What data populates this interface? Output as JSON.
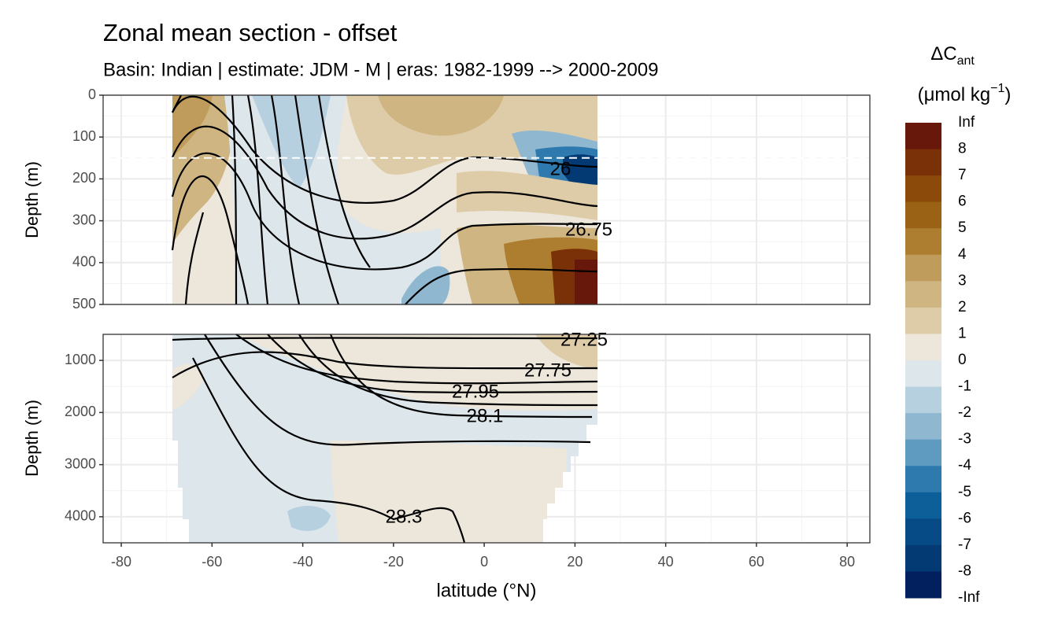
{
  "chart_data": [
    {
      "type": "contour",
      "title": "Zonal mean section - offset",
      "subtitle": "Basin: Indian | estimate: JDM - M | eras: 1982-1999 --> 2000-2009",
      "y_label": "Depth (m)",
      "ylim": [
        0,
        500
      ],
      "yticks": [
        0,
        100,
        200,
        300,
        400,
        500
      ],
      "y_reversed": true,
      "hline": 150,
      "grid": true,
      "contour_labels": [
        "26",
        "26.75"
      ]
    },
    {
      "type": "contour",
      "y_label": "Depth (m)",
      "x_label": "latitude (°N)",
      "ylim": [
        500,
        4500
      ],
      "yticks": [
        1000,
        2000,
        3000,
        4000
      ],
      "y_reversed": true,
      "xlim": [
        -84,
        85
      ],
      "xticks": [
        -80,
        -60,
        -40,
        -20,
        0,
        20,
        40,
        60,
        80
      ],
      "grid": true,
      "contour_labels": [
        "27.25",
        "27.75",
        "27.95",
        "28.1",
        "28.3"
      ]
    }
  ],
  "legend": {
    "title": "ΔC",
    "title_sub": "ant",
    "unit": "(μmol kg",
    "unit_sup": "−1",
    "unit_end": ")",
    "labels": [
      "Inf",
      8,
      7,
      6,
      5,
      4,
      3,
      2,
      1,
      0,
      -1,
      -2,
      -3,
      -4,
      -5,
      -6,
      -7,
      -8,
      "-Inf"
    ],
    "colors": [
      "#67180a",
      "#7a3108",
      "#8c4a0a",
      "#9a6214",
      "#ae7e30",
      "#c09c5c",
      "#cfb582",
      "#decca8",
      "#ede6da",
      "#dde6eb",
      "#b7d0df",
      "#8fb8d0",
      "#5f9bc0",
      "#2e7aae",
      "#0d5f9a",
      "#064a86",
      "#033a74",
      "#021f5e"
    ]
  }
}
